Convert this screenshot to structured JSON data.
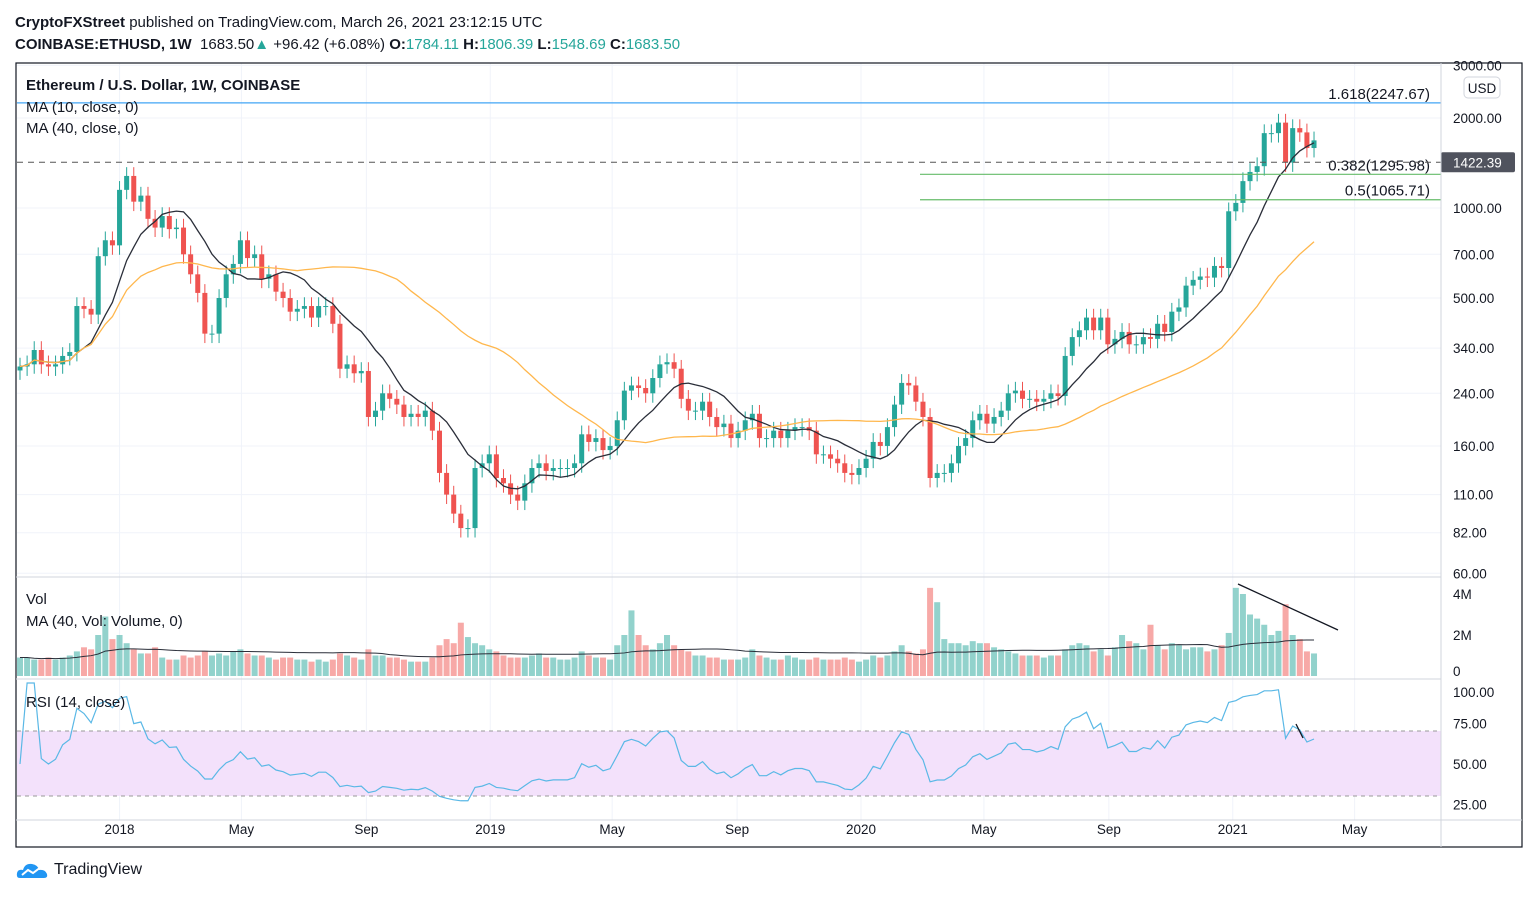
{
  "header": {
    "publisher": "CryptoFXStreet",
    "published_text": "published on TradingView.com, March 26, 2021 23:12:15 UTC",
    "symbol": "COINBASE:ETHUSD, 1W",
    "last": "1683.50",
    "change": "+96.42 (+6.08%)",
    "o_label": "O:",
    "o": "1784.11",
    "h_label": "H:",
    "h": "1806.39",
    "l_label": "L:",
    "l": "1548.69",
    "c_label": "C:",
    "c": "1683.50"
  },
  "legend": {
    "main": "Ethereum / U.S. Dollar, 1W, COINBASE",
    "ma10": "MA (10, close, 0)",
    "ma40": "MA (40, close, 0)",
    "vol": "Vol",
    "vol_ma": "MA (40, Vol: Volume, 0)",
    "rsi": "RSI (14, close)"
  },
  "footer": {
    "brand": "TradingView"
  },
  "colors": {
    "up": "#26a69a",
    "down": "#ef5350",
    "ma10": "#2a2e39",
    "ma40": "#ffb74d",
    "rsi": "#5ab8e6",
    "fib_ext": "#42a5f5",
    "fib": "#66bb6a",
    "rsi_band": "#f3e1fb"
  },
  "chart_data": {
    "type": "candlestick",
    "interval": "1W",
    "start": "2017-09-25",
    "y_scale": "log",
    "currency": "USD",
    "ylim": [
      60,
      3000
    ],
    "y_ticks": [
      "3000.00",
      "2000.00",
      "1000.00",
      "700.00",
      "500.00",
      "340.00",
      "240.00",
      "160.00",
      "110.00",
      "82.00",
      "60.00"
    ],
    "x_ticks": [
      {
        "label": "2018",
        "date": "2018-01-01"
      },
      {
        "label": "May",
        "date": "2018-05-01"
      },
      {
        "label": "Sep",
        "date": "2018-09-01"
      },
      {
        "label": "2019",
        "date": "2019-01-01"
      },
      {
        "label": "May",
        "date": "2019-05-01"
      },
      {
        "label": "Sep",
        "date": "2019-09-01"
      },
      {
        "label": "2020",
        "date": "2020-01-01"
      },
      {
        "label": "May",
        "date": "2020-05-01"
      },
      {
        "label": "Sep",
        "date": "2020-09-01"
      },
      {
        "label": "2021",
        "date": "2021-01-01"
      },
      {
        "label": "May",
        "date": "2021-05-01"
      }
    ],
    "close": [
      295,
      300,
      335,
      300,
      295,
      300,
      320,
      330,
      470,
      460,
      440,
      690,
      780,
      750,
      1150,
      1280,
      1050,
      1100,
      920,
      860,
      940,
      850,
      860,
      700,
      600,
      520,
      380,
      380,
      500,
      600,
      650,
      780,
      680,
      700,
      580,
      600,
      525,
      500,
      450,
      460,
      470,
      430,
      470,
      470,
      410,
      290,
      300,
      280,
      285,
      200,
      210,
      240,
      230,
      220,
      200,
      205,
      200,
      210,
      180,
      130,
      110,
      95,
      85,
      85,
      135,
      140,
      150,
      125,
      120,
      110,
      105,
      120,
      135,
      140,
      132,
      135,
      135,
      135,
      140,
      175,
      165,
      170,
      155,
      160,
      195,
      245,
      255,
      250,
      240,
      270,
      300,
      305,
      290,
      230,
      210,
      210,
      225,
      200,
      185,
      190,
      170,
      180,
      195,
      205,
      170,
      170,
      180,
      170,
      180,
      185,
      185,
      180,
      150,
      150,
      145,
      140,
      130,
      128,
      135,
      145,
      165,
      160,
      185,
      220,
      260,
      255,
      225,
      200,
      125,
      130,
      130,
      140,
      160,
      170,
      195,
      205,
      190,
      200,
      210,
      240,
      245,
      230,
      230,
      225,
      230,
      240,
      235,
      320,
      370,
      390,
      430,
      390,
      430,
      350,
      365,
      385,
      350,
      350,
      370,
      365,
      410,
      385,
      450,
      465,
      550,
      575,
      590,
      585,
      640,
      630,
      975,
      1040,
      1230,
      1320,
      1380,
      1780,
      1780,
      1930,
      1420,
      1850,
      1790,
      1587,
      1683.5
    ],
    "volume_millions": [
      0.9,
      0.9,
      0.8,
      0.8,
      0.9,
      0.8,
      0.9,
      1.0,
      1.2,
      1.4,
      1.3,
      2.0,
      2.9,
      1.8,
      2.0,
      1.6,
      1.3,
      1.1,
      1.1,
      1.4,
      0.9,
      0.8,
      0.8,
      1.0,
      0.9,
      1.0,
      1.2,
      1.0,
      1.1,
      1.0,
      1.2,
      1.3,
      1.1,
      1.0,
      1.0,
      0.9,
      0.8,
      0.9,
      0.9,
      0.8,
      0.8,
      0.7,
      0.8,
      0.7,
      0.8,
      1.1,
      1.0,
      0.9,
      0.8,
      1.3,
      1.0,
      1.0,
      0.9,
      0.9,
      0.8,
      0.7,
      0.7,
      0.7,
      0.9,
      1.5,
      1.8,
      1.6,
      2.6,
      1.9,
      1.6,
      1.5,
      1.3,
      1.2,
      1.0,
      0.9,
      0.9,
      0.9,
      1.0,
      1.1,
      0.9,
      0.9,
      0.8,
      0.8,
      0.9,
      1.2,
      1.0,
      0.9,
      0.9,
      0.8,
      1.5,
      2.0,
      3.2,
      2.0,
      1.5,
      1.3,
      1.6,
      2.0,
      1.5,
      1.3,
      1.2,
      1.0,
      1.0,
      0.9,
      0.9,
      0.8,
      0.8,
      0.8,
      0.9,
      1.3,
      1.0,
      0.9,
      0.8,
      0.8,
      1.0,
      0.9,
      0.8,
      0.8,
      0.9,
      0.8,
      0.8,
      0.8,
      0.9,
      0.8,
      0.7,
      0.8,
      1.0,
      0.9,
      1.0,
      1.2,
      1.5,
      1.2,
      1.1,
      1.3,
      4.3,
      3.6,
      1.8,
      1.6,
      1.6,
      1.5,
      1.7,
      1.6,
      1.6,
      1.4,
      1.3,
      1.2,
      1.1,
      1.0,
      1.0,
      1.0,
      0.9,
      1.0,
      1.0,
      1.3,
      1.5,
      1.6,
      1.5,
      1.2,
      1.3,
      1.0,
      1.4,
      2.0,
      1.7,
      1.6,
      1.3,
      2.5,
      1.5,
      1.3,
      1.6,
      1.5,
      1.3,
      1.4,
      1.4,
      1.2,
      1.3,
      1.5,
      2.1,
      4.3,
      4.0,
      3.0,
      2.8,
      2.5,
      2.0,
      2.2,
      3.5,
      2.0,
      1.8,
      1.2,
      1.1
    ],
    "vol_ticks": [
      "4M",
      "2M",
      "0"
    ],
    "rsi_ticks": [
      "100.00",
      "75.00",
      "50.00",
      "25.00"
    ],
    "rsi_band": [
      30,
      70
    ],
    "fib_levels": [
      {
        "label": "1.618(2247.67)",
        "value": 2247.67,
        "color": "#42a5f5"
      },
      {
        "label": "0.382(1295.98)",
        "value": 1295.98,
        "color": "#66bb6a"
      },
      {
        "label": "0.5(1065.71)",
        "value": 1065.71,
        "color": "#66bb6a"
      }
    ],
    "price_line": {
      "label": "1422.39",
      "value": 1422.39
    }
  }
}
